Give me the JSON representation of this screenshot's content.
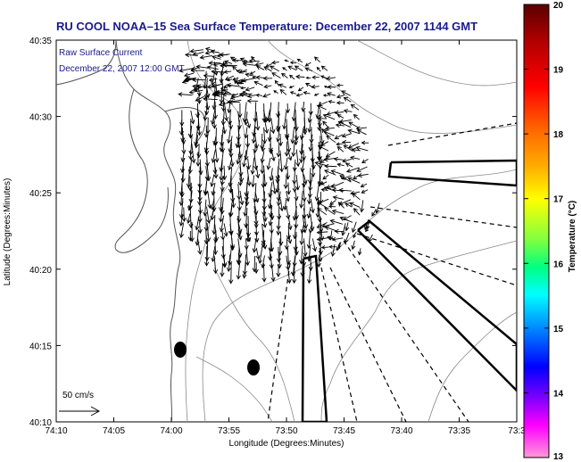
{
  "title": "RU COOL  NOAA–15  Sea Surface Temperature:  December 22, 2007 1144 GMT",
  "overlay": {
    "line1": "Raw Surface Current",
    "line2": "December 22, 2007 12:00 GMT"
  },
  "scale_label": "50 cm/s",
  "axes": {
    "xlabel": "Longitude (Degrees:Minutes)",
    "ylabel": "Latitude (Degrees:Minutes)",
    "x_ticks": [
      "74:10",
      "74:05",
      "74:00",
      "73:55",
      "73:50",
      "73:45",
      "73:40",
      "73:35",
      "73:3"
    ],
    "y_ticks": [
      "40:35",
      "40:30",
      "40:25",
      "40:20",
      "40:15",
      "40:10"
    ]
  },
  "colorbar": {
    "label": "Temperature (°C)",
    "ticks": [
      "20",
      "19",
      "18",
      "17",
      "16",
      "15",
      "14",
      "13"
    ],
    "colors": [
      "#5a0000",
      "#b00000",
      "#ff0000",
      "#ff6a00",
      "#ffb000",
      "#ffff00",
      "#80ff40",
      "#00ff80",
      "#00ffff",
      "#0080ff",
      "#0000ff",
      "#8000ff",
      "#ff00ff",
      "#ff9ad8"
    ]
  },
  "map": {
    "land_color": "#ffffff",
    "contour_color": "#8a8a8a",
    "vector_color": "#000000",
    "markers": 2
  },
  "chart_data": {
    "type": "map",
    "title": "RU COOL  NOAA–15  Sea Surface Temperature:  December 22, 2007 1144 GMT",
    "xlabel": "Longitude (Degrees:Minutes)",
    "ylabel": "Latitude (Degrees:Minutes)",
    "xlim": [
      "74:10",
      "73:30"
    ],
    "ylim": [
      "40:10",
      "40:35"
    ],
    "colorbar_range": [
      13,
      20
    ],
    "colorbar_units": "°C",
    "vector_scale": "50 cm/s",
    "annotation": "Raw Surface Current December 22, 2007 12:00 GMT"
  }
}
